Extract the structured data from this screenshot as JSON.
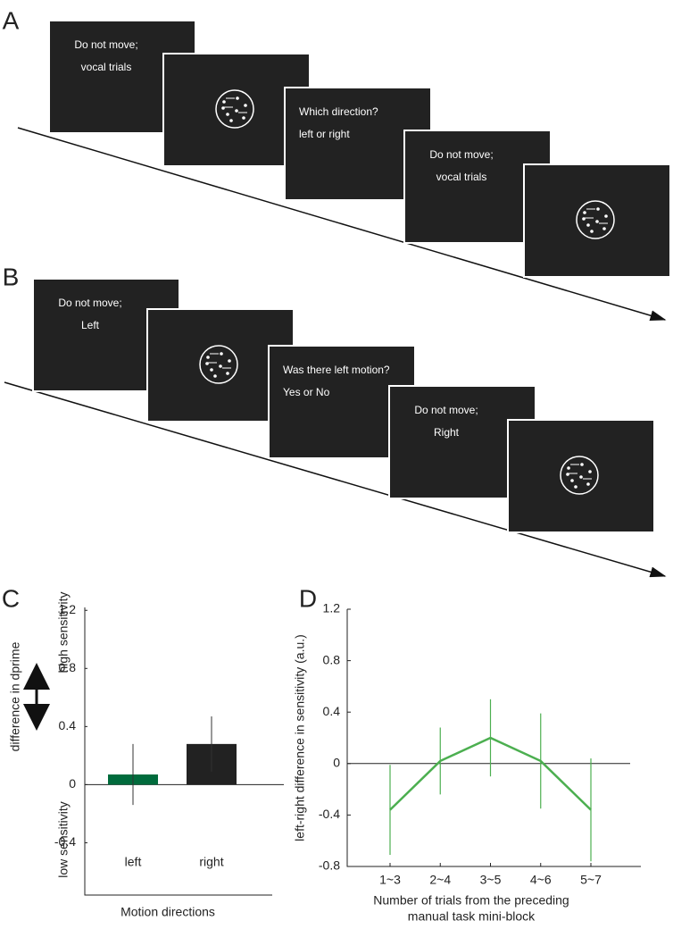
{
  "panel_a": {
    "label": "A",
    "screens": [
      {
        "lines": [
          "Do not move;",
          "vocal trials"
        ]
      },
      {
        "lines": []
      },
      {
        "lines": [
          "Which direction?",
          "left or right"
        ]
      },
      {
        "lines": [
          "Do not move;",
          "vocal trials"
        ]
      },
      {
        "lines": []
      }
    ]
  },
  "panel_b": {
    "label": "B",
    "screens": [
      {
        "lines": [
          "Do not move;",
          "Left"
        ]
      },
      {
        "lines": []
      },
      {
        "lines": [
          "Was there left motion?",
          "Yes or No"
        ]
      },
      {
        "lines": [
          "Do not move;",
          "Right"
        ]
      },
      {
        "lines": []
      }
    ]
  },
  "chart_data": [
    {
      "type": "bar",
      "label": "C",
      "categories": [
        "left",
        "right"
      ],
      "values": [
        0.07,
        0.28
      ],
      "errors": [
        0.21,
        0.19
      ],
      "colors": [
        "#006b3c",
        "#222222"
      ],
      "ylim": [
        -0.76,
        1.22
      ],
      "yticks": [
        -0.4,
        0,
        0.4,
        0.8,
        1.2
      ],
      "xlabel": "Motion directions",
      "ylabel": "difference in dprime",
      "annotations": [
        "high sensitivity",
        "low sensitivity"
      ]
    },
    {
      "type": "line",
      "label": "D",
      "categories": [
        "1~3",
        "2~4",
        "3~5",
        "4~6",
        "5~7"
      ],
      "values": [
        -0.36,
        0.02,
        0.2,
        0.02,
        -0.36
      ],
      "errors": [
        0.35,
        0.26,
        0.3,
        0.37,
        0.4
      ],
      "color": "#4caf50",
      "ylim": [
        -0.8,
        1.2
      ],
      "yticks": [
        -0.8,
        -0.4,
        0,
        0.4,
        0.8,
        1.2
      ],
      "xlabel": [
        "Number of trials from the preceding",
        "manual task mini-block"
      ],
      "ylabel": "left-right difference in sensitivity (a.u.)"
    }
  ]
}
